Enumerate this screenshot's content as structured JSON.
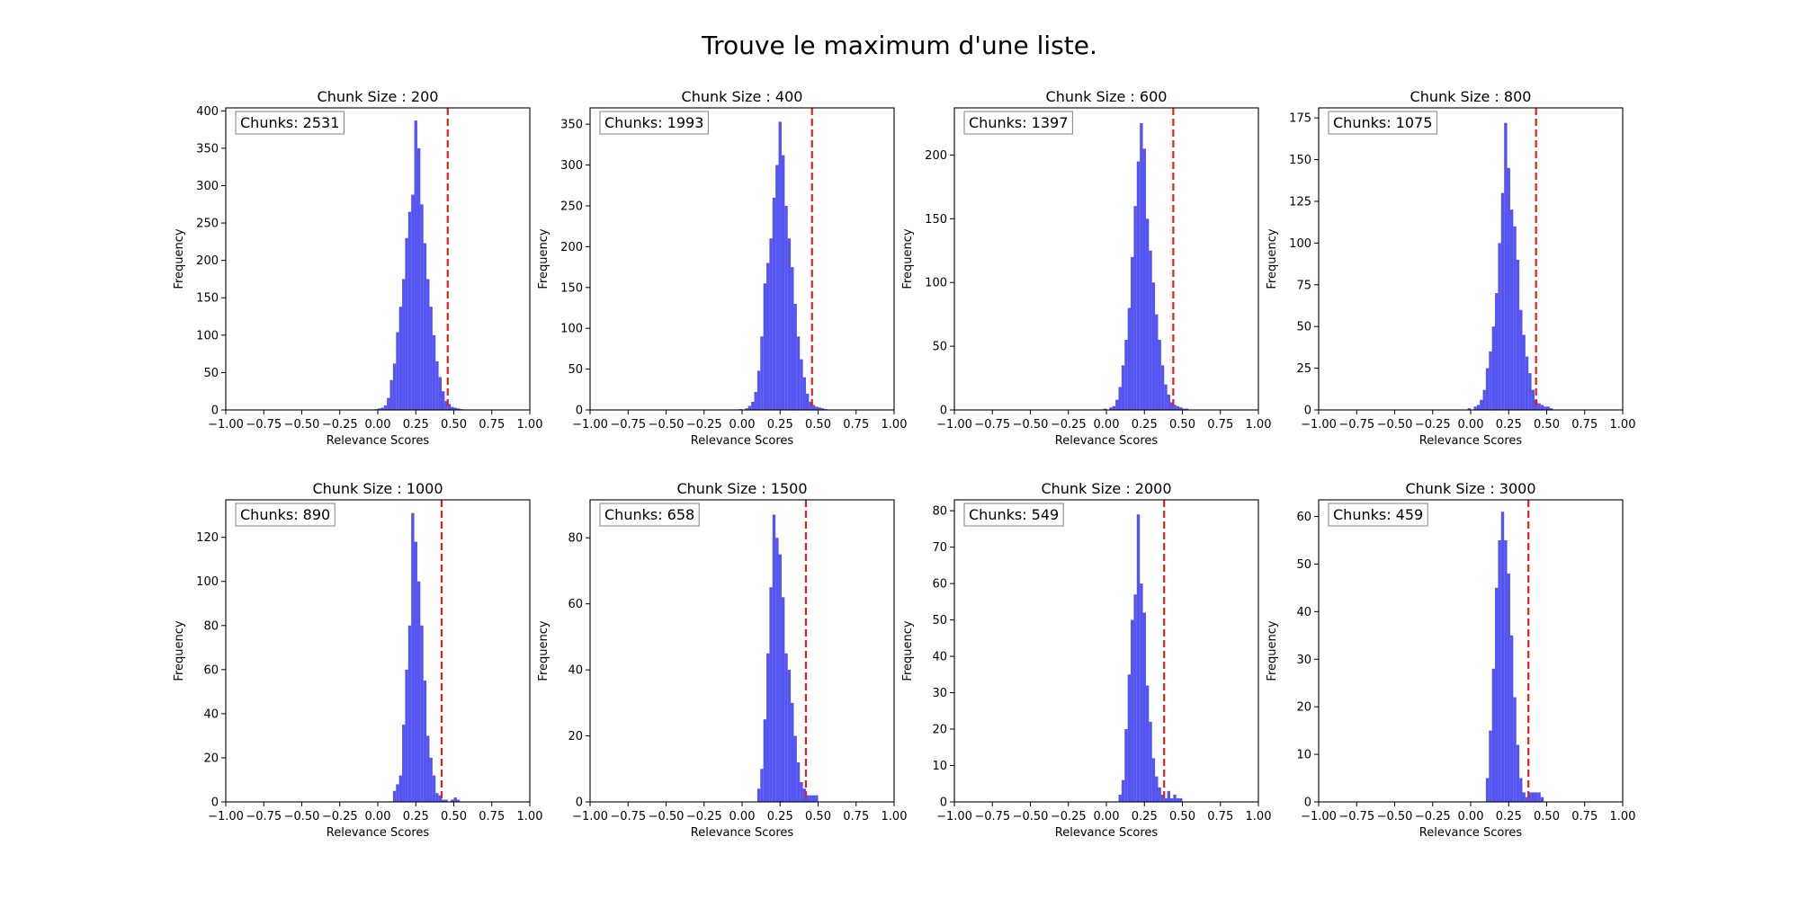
{
  "suptitle": "Trouve le maximum d'une liste.",
  "chart_data": [
    {
      "type": "bar",
      "title": "Chunk Size : 200",
      "xlabel": "Relevance Scores",
      "ylabel": "Frequency",
      "annotation": "Chunks: 2531",
      "xlim": [
        -1.0,
        1.0
      ],
      "ylim": [
        0,
        404
      ],
      "yticks": [
        0,
        50,
        100,
        150,
        200,
        250,
        300,
        350,
        400
      ],
      "xticks": [
        "−1.00",
        "−0.75",
        "−0.50",
        "−0.25",
        "0.00",
        "0.25",
        "0.50",
        "0.75",
        "1.00"
      ],
      "xtick_values": [
        -1,
        -0.75,
        -0.5,
        -0.25,
        0,
        0.25,
        0.5,
        0.75,
        1
      ],
      "threshold": 0.46,
      "bin_start": -0.02,
      "bin_width": 0.02,
      "values": [
        1,
        2,
        3,
        6,
        16,
        40,
        62,
        104,
        138,
        175,
        230,
        265,
        288,
        387,
        350,
        275,
        223,
        175,
        138,
        100,
        65,
        44,
        25,
        12,
        8,
        4,
        3,
        2,
        1
      ]
    },
    {
      "type": "bar",
      "title": "Chunk Size : 400",
      "xlabel": "Relevance Scores",
      "ylabel": "Frequency",
      "annotation": "Chunks: 1993",
      "xlim": [
        -1.0,
        1.0
      ],
      "ylim": [
        0,
        370
      ],
      "yticks": [
        0,
        50,
        100,
        150,
        200,
        250,
        300,
        350
      ],
      "xticks": [
        "−1.00",
        "−0.75",
        "−0.50",
        "−0.25",
        "0.00",
        "0.25",
        "0.50",
        "0.75",
        "1.00"
      ],
      "xtick_values": [
        -1,
        -0.75,
        -0.5,
        -0.25,
        0,
        0.25,
        0.5,
        0.75,
        1
      ],
      "threshold": 0.46,
      "bin_start": -0.02,
      "bin_width": 0.02,
      "values": [
        1,
        0,
        2,
        5,
        10,
        22,
        48,
        90,
        155,
        180,
        210,
        260,
        300,
        353,
        312,
        250,
        210,
        175,
        130,
        90,
        62,
        40,
        20,
        10,
        6,
        4,
        3,
        2,
        1
      ]
    },
    {
      "type": "bar",
      "title": "Chunk Size : 600",
      "xlabel": "Relevance Scores",
      "ylabel": "Frequency",
      "annotation": "Chunks: 1397",
      "xlim": [
        -1.0,
        1.0
      ],
      "ylim": [
        0,
        237
      ],
      "yticks": [
        0,
        50,
        100,
        150,
        200
      ],
      "xticks": [
        "−1.00",
        "−0.75",
        "−0.50",
        "−0.25",
        "0.00",
        "0.25",
        "0.50",
        "0.75",
        "1.00"
      ],
      "xtick_values": [
        -1,
        -0.75,
        -0.5,
        -0.25,
        0,
        0.25,
        0.5,
        0.75,
        1
      ],
      "threshold": 0.44,
      "bin_start": -0.02,
      "bin_width": 0.02,
      "values": [
        1,
        0,
        2,
        3,
        8,
        18,
        35,
        55,
        80,
        120,
        160,
        195,
        225,
        205,
        150,
        125,
        100,
        75,
        55,
        35,
        20,
        12,
        6,
        4,
        3,
        2,
        1,
        1,
        0
      ]
    },
    {
      "type": "bar",
      "title": "Chunk Size : 800",
      "xlabel": "Relevance Scores",
      "ylabel": "Frequency",
      "annotation": "Chunks: 1075",
      "xlim": [
        -1.0,
        1.0
      ],
      "ylim": [
        0,
        181
      ],
      "yticks": [
        0,
        25,
        50,
        75,
        100,
        125,
        150,
        175
      ],
      "xticks": [
        "−1.00",
        "−0.75",
        "−0.50",
        "−0.25",
        "0.00",
        "0.25",
        "0.50",
        "0.75",
        "1.00"
      ],
      "xtick_values": [
        -1,
        -0.75,
        -0.5,
        -0.25,
        0,
        0.25,
        0.5,
        0.75,
        1
      ],
      "threshold": 0.43,
      "bin_start": -0.02,
      "bin_width": 0.02,
      "values": [
        1,
        0,
        2,
        3,
        6,
        12,
        25,
        35,
        50,
        70,
        100,
        130,
        172,
        145,
        120,
        110,
        90,
        60,
        45,
        32,
        22,
        12,
        6,
        4,
        3,
        2,
        2,
        1,
        0
      ]
    },
    {
      "type": "bar",
      "title": "Chunk Size : 1000",
      "xlabel": "Relevance Scores",
      "ylabel": "Frequency",
      "annotation": "Chunks: 890",
      "xlim": [
        -1.0,
        1.0
      ],
      "ylim": [
        0,
        137
      ],
      "yticks": [
        0,
        20,
        40,
        60,
        80,
        100,
        120
      ],
      "xticks": [
        "−1.00",
        "−0.75",
        "−0.50",
        "−0.25",
        "0.00",
        "0.25",
        "0.50",
        "0.75",
        "1.00"
      ],
      "xtick_values": [
        -1,
        -0.75,
        -0.5,
        -0.25,
        0,
        0.25,
        0.5,
        0.75,
        1
      ],
      "threshold": 0.42,
      "bin_start": 0.1,
      "bin_width": 0.02,
      "values": [
        5,
        8,
        12,
        35,
        60,
        80,
        131,
        118,
        100,
        80,
        55,
        30,
        20,
        12,
        4,
        3,
        1,
        1,
        0,
        1,
        2,
        1
      ]
    },
    {
      "type": "bar",
      "title": "Chunk Size : 1500",
      "xlabel": "Relevance Scores",
      "ylabel": "Frequency",
      "annotation": "Chunks: 658",
      "xlim": [
        -1.0,
        1.0
      ],
      "ylim": [
        0,
        91.5
      ],
      "yticks": [
        0,
        20,
        40,
        60,
        80
      ],
      "xticks": [
        "−1.00",
        "−0.75",
        "−0.50",
        "−0.25",
        "0.00",
        "0.25",
        "0.50",
        "0.75",
        "1.00"
      ],
      "xtick_values": [
        -1,
        -0.75,
        -0.5,
        -0.25,
        0,
        0.25,
        0.5,
        0.75,
        1
      ],
      "threshold": 0.42,
      "bin_start": 0.1,
      "bin_width": 0.02,
      "values": [
        4,
        10,
        25,
        45,
        65,
        87,
        80,
        75,
        62,
        45,
        40,
        30,
        20,
        12,
        6,
        4,
        2,
        2,
        2,
        2
      ]
    },
    {
      "type": "bar",
      "title": "Chunk Size : 2000",
      "xlabel": "Relevance Scores",
      "ylabel": "Frequency",
      "annotation": "Chunks: 549",
      "xlim": [
        -1.0,
        1.0
      ],
      "ylim": [
        0,
        83
      ],
      "yticks": [
        0,
        10,
        20,
        30,
        40,
        50,
        60,
        70,
        80
      ],
      "xticks": [
        "−1.00",
        "−0.75",
        "−0.50",
        "−0.25",
        "0.00",
        "0.25",
        "0.50",
        "0.75",
        "1.00"
      ],
      "xtick_values": [
        -1,
        -0.75,
        -0.5,
        -0.25,
        0,
        0.25,
        0.5,
        0.75,
        1
      ],
      "threshold": 0.38,
      "bin_start": 0.08,
      "bin_width": 0.02,
      "values": [
        2,
        6,
        20,
        35,
        50,
        57,
        79,
        60,
        52,
        32,
        22,
        12,
        7,
        4,
        2,
        1,
        3,
        1,
        2,
        1,
        1
      ]
    },
    {
      "type": "bar",
      "title": "Chunk Size : 3000",
      "xlabel": "Relevance Scores",
      "ylabel": "Frequency",
      "annotation": "Chunks: 459",
      "xlim": [
        -1.0,
        1.0
      ],
      "ylim": [
        0,
        63.5
      ],
      "yticks": [
        0,
        10,
        20,
        30,
        40,
        50,
        60
      ],
      "xticks": [
        "−1.00",
        "−0.75",
        "−0.50",
        "−0.25",
        "0.00",
        "0.25",
        "0.50",
        "0.75",
        "1.00"
      ],
      "xtick_values": [
        -1,
        -0.75,
        -0.5,
        -0.25,
        0,
        0.25,
        0.5,
        0.75,
        1
      ],
      "threshold": 0.38,
      "bin_start": 0.1,
      "bin_width": 0.02,
      "values": [
        5,
        15,
        28,
        45,
        55,
        61,
        55,
        48,
        35,
        22,
        12,
        5,
        2,
        1,
        2,
        2,
        2,
        2,
        1
      ]
    }
  ],
  "colors": {
    "bars": "#4b4bf0",
    "threshold": "#e3201b",
    "axes": "#000000"
  }
}
